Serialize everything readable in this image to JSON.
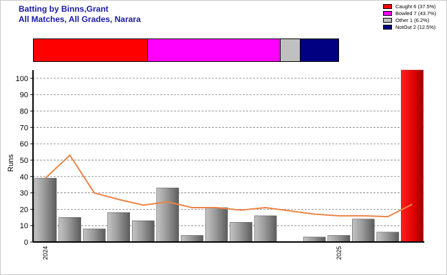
{
  "header": {
    "title": "Batting by Binns,Grant",
    "subtitle": "All Matches, All Grades, Narara"
  },
  "legend": [
    {
      "label": "Caught 6 (37.5%)",
      "color": "#ff0000",
      "fraction": 0.375
    },
    {
      "label": "Bowled 7 (43.7%)",
      "color": "#ff00ff",
      "fraction": 0.437
    },
    {
      "label": "Other 1 (6.2%)",
      "color": "#c0c0c0",
      "fraction": 0.062
    },
    {
      "label": "NotOut 2 (12.5%)",
      "color": "#000080",
      "fraction": 0.125
    }
  ],
  "chart_data": {
    "type": "bar",
    "ylabel": "Runs",
    "ylim": [
      0,
      105
    ],
    "yticks": [
      "0",
      "10",
      "20",
      "30",
      "40",
      "50",
      "60",
      "70",
      "80",
      "90",
      "100"
    ],
    "year_ticks": [
      {
        "label": "2024",
        "index": 0
      },
      {
        "label": "2025",
        "index": 12
      }
    ],
    "series": [
      {
        "type": "bar",
        "values": [
          39,
          15,
          8,
          18,
          13,
          33,
          4,
          21,
          12,
          16,
          0,
          3,
          4,
          14,
          6,
          105
        ]
      },
      {
        "type": "line",
        "color": "#ea8446",
        "values": [
          39,
          53,
          30,
          26,
          22.5,
          24.5,
          21,
          21,
          19.5,
          21,
          19,
          17,
          16,
          16,
          15.5,
          23
        ]
      }
    ],
    "highlight_index": 15,
    "grid": true
  }
}
